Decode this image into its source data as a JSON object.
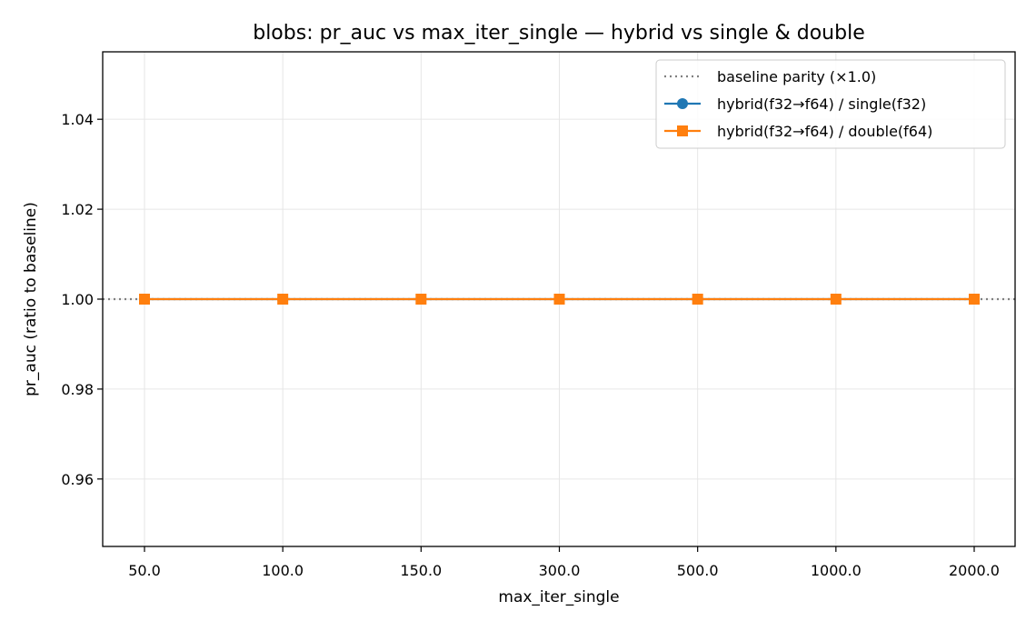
{
  "chart_data": {
    "type": "line",
    "title": "blobs: pr_auc vs max_iter_single — hybrid vs single & double",
    "xlabel": "max_iter_single",
    "ylabel": "pr_auc (ratio to baseline)",
    "categories": [
      "50.0",
      "100.0",
      "150.0",
      "300.0",
      "500.0",
      "1000.0",
      "2000.0"
    ],
    "x_axis": "categorical",
    "ylim": [
      0.945,
      1.055
    ],
    "y_ticks": [
      "0.96",
      "0.98",
      "1.00",
      "1.02",
      "1.04"
    ],
    "y_tick_values": [
      0.96,
      0.98,
      1.0,
      1.02,
      1.04
    ],
    "grid": true,
    "legend_position": "upper right",
    "baseline": {
      "name": "baseline parity (×1.0)",
      "value": 1.0,
      "style": "dotted",
      "color": "#808080"
    },
    "series": [
      {
        "name": "hybrid(f32→f64) / single(f32)",
        "values": [
          1.0,
          1.0,
          1.0,
          1.0,
          1.0,
          1.0,
          1.0
        ],
        "color": "#1f77b4",
        "marker": "circle"
      },
      {
        "name": "hybrid(f32→f64) / double(f64)",
        "values": [
          1.0,
          1.0,
          1.0,
          1.0,
          1.0,
          1.0,
          1.0
        ],
        "color": "#ff7f0e",
        "marker": "square"
      }
    ]
  }
}
